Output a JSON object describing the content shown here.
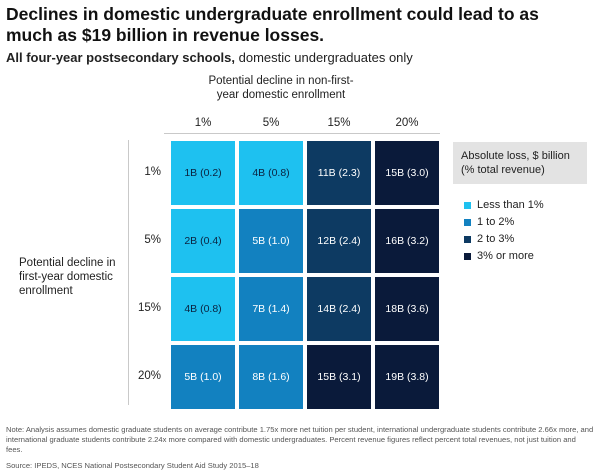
{
  "title": "Declines in domestic undergraduate enrollment could lead to as much as $19 billion in revenue losses.",
  "subtitle_bold": "All four-year postsecondary schools,",
  "subtitle_rest": " domestic undergraduates only",
  "legend": {
    "title": "Absolute loss, $ billion (% total revenue)",
    "items": [
      {
        "label": "Less than 1%",
        "color": "#1ec1f0"
      },
      {
        "label": "1 to 2%",
        "color": "#1281c0"
      },
      {
        "label": "2 to 3%",
        "color": "#0d3a62"
      },
      {
        "label": "3% or more",
        "color": "#0a1a3a"
      }
    ]
  },
  "note": "Note: Analysis assumes domestic graduate students on average contribute 1.75x more net tuition per student, international undergraduate students contribute 2.66x more, and international graduate students contribute 2.24x more compared with domestic undergraduates. Percent revenue figures reflect percent total revenues, not just tuition and fees.",
  "source": "Source: IPEDS, NCES National Postsecondary Student Aid Study 2015–18",
  "chart_data": {
    "type": "heatmap",
    "xlabel": "Potential decline in non-first-year domestic enrollment",
    "ylabel": "Potential decline in first-year domestic enrollment",
    "x_categories": [
      "1%",
      "5%",
      "15%",
      "20%"
    ],
    "y_categories": [
      "1%",
      "5%",
      "15%",
      "20%"
    ],
    "values": [
      [
        {
          "loss": 1,
          "pct": 0.2,
          "label": "1B (0.2)"
        },
        {
          "loss": 4,
          "pct": 0.8,
          "label": "4B (0.8)"
        },
        {
          "loss": 11,
          "pct": 2.3,
          "label": "11B (2.3)"
        },
        {
          "loss": 15,
          "pct": 3.0,
          "label": "15B (3.0)"
        }
      ],
      [
        {
          "loss": 2,
          "pct": 0.4,
          "label": "2B (0.4)"
        },
        {
          "loss": 5,
          "pct": 1.0,
          "label": "5B (1.0)"
        },
        {
          "loss": 12,
          "pct": 2.4,
          "label": "12B (2.4)"
        },
        {
          "loss": 16,
          "pct": 3.2,
          "label": "16B (3.2)"
        }
      ],
      [
        {
          "loss": 4,
          "pct": 0.8,
          "label": "4B (0.8)"
        },
        {
          "loss": 7,
          "pct": 1.4,
          "label": "7B (1.4)"
        },
        {
          "loss": 14,
          "pct": 2.4,
          "label": "14B (2.4)"
        },
        {
          "loss": 18,
          "pct": 3.6,
          "label": "18B (3.6)"
        }
      ],
      [
        {
          "loss": 5,
          "pct": 1.0,
          "label": "5B (1.0)"
        },
        {
          "loss": 8,
          "pct": 1.6,
          "label": "8B (1.6)"
        },
        {
          "loss": 15,
          "pct": 3.1,
          "label": "15B (3.1)"
        },
        {
          "loss": 19,
          "pct": 3.8,
          "label": "19B (3.8)"
        }
      ]
    ],
    "value_units": "$ billion (% total revenue)"
  }
}
